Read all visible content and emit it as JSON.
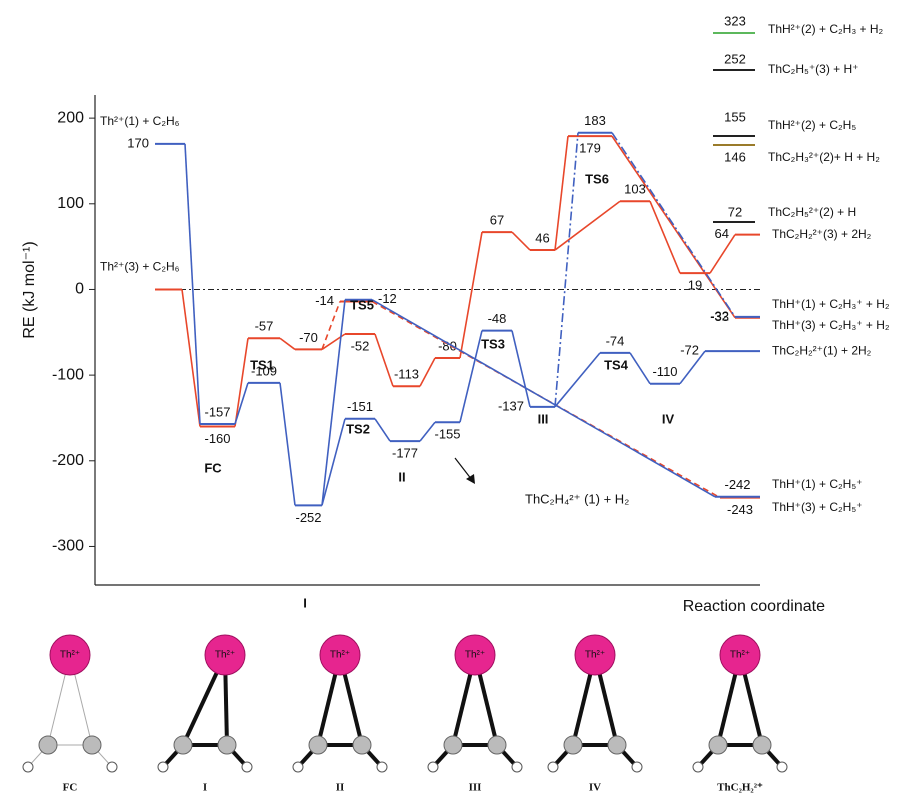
{
  "chart_data": {
    "type": "energy-profile",
    "y_label": "RE (kJ mol⁻¹)",
    "x_label": "Reaction coordinate",
    "ylim": [
      -345,
      227
    ],
    "yticks": [
      -300,
      -200,
      -100,
      0,
      100,
      200
    ],
    "zero_line": true,
    "series": [
      {
        "color": "#e8472b",
        "linestyle": "solid",
        "start_label": "Th²⁺(3) + C₂H₆",
        "end_label": "ThC₂H₂²⁺(3) + 2H₂",
        "values": [
          0,
          -160,
          -57,
          -70,
          -52,
          -113,
          -80,
          67,
          46,
          103,
          19,
          64
        ],
        "value_labels": [
          null,
          "-160",
          "-57",
          "-70",
          "-52",
          "-113",
          "-80",
          "67",
          "46",
          "103",
          "19",
          "64"
        ]
      },
      {
        "color": "#e8472b",
        "linestyle": "solid",
        "end_label": "ThH⁺(3) + C₂H₃⁺ + H₂",
        "values": [
          179,
          -33
        ]
      },
      {
        "color": "#e8472b",
        "linestyle": "dashed",
        "end_label": "ThH⁺(3) + C₂H₅⁺",
        "values": [
          -14,
          -243
        ]
      },
      {
        "color": "#4060c0",
        "linestyle": "solid",
        "start_label": "Th²⁺(1) + C₂H₆",
        "end_label": "ThC₂H₂²⁺(1) + 2H₂",
        "values": [
          170,
          -157,
          -109,
          -252,
          -151,
          -177,
          -155,
          -48,
          -137,
          -74,
          -110,
          -72
        ]
      },
      {
        "color": "#4060c0",
        "linestyle": "solid",
        "end_label": "ThH⁺(1) + C₂H₅⁺",
        "values": [
          -12,
          -242
        ]
      },
      {
        "color": "#4060c0",
        "linestyle": "dashdot",
        "end_label": "ThH⁺(1) + C₂H₃⁺ + H₂",
        "values": [
          183,
          -32
        ]
      }
    ],
    "annotations": [
      "FC",
      "TS1",
      "I",
      "TS5",
      "TS2",
      "II",
      "TS3",
      "III",
      "TS4",
      "IV",
      "TS6",
      "ThC₂H₄²⁺ (1) + H₂"
    ],
    "products": [
      {
        "value": 323,
        "label": "ThH²⁺(2) + C₂H₃ + H₂",
        "color": "#5cb85c"
      },
      {
        "value": 252,
        "label": "ThC₂H₅⁺(3) + H⁺",
        "color": "#222222"
      },
      {
        "value": 155,
        "label": "ThH²⁺(2) + C₂H₅",
        "color": "#222222"
      },
      {
        "value": 146,
        "label": "ThC₂H₃²⁺(2)+ H + H₂",
        "color": "#9a7b2a"
      },
      {
        "value": 72,
        "label": "ThC₂H₅²⁺(2) + H",
        "color": "#222222"
      }
    ],
    "structures": [
      {
        "atom": "Th²⁺",
        "caption": "FC"
      },
      {
        "atom": "Th²⁺",
        "caption": "I"
      },
      {
        "atom": "Th²⁺",
        "caption": "II"
      },
      {
        "atom": "Th²⁺",
        "caption": "III"
      },
      {
        "atom": "Th²⁺",
        "caption": "IV"
      },
      {
        "atom": "Th²⁺",
        "caption": "ThC₂H₂²⁺"
      }
    ]
  }
}
